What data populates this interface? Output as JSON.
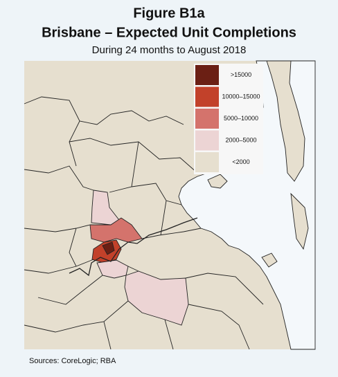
{
  "title": "Figure B1a",
  "heading": "Brisbane – Expected Unit Completions",
  "subtitle": "During 24 months to August 2018",
  "legend": {
    "items": [
      {
        "label": ">15000",
        "color": "#6b1f14"
      },
      {
        "label": "10000–15000",
        "color": "#c2412a"
      },
      {
        "label": "5000–10000",
        "color": "#d4736c"
      },
      {
        "label": "2000–5000",
        "color": "#ecd4d4"
      },
      {
        "label": "<2000",
        "color": "#e6dfcf"
      }
    ]
  },
  "source": "Sources: CoreLogic; RBA"
}
